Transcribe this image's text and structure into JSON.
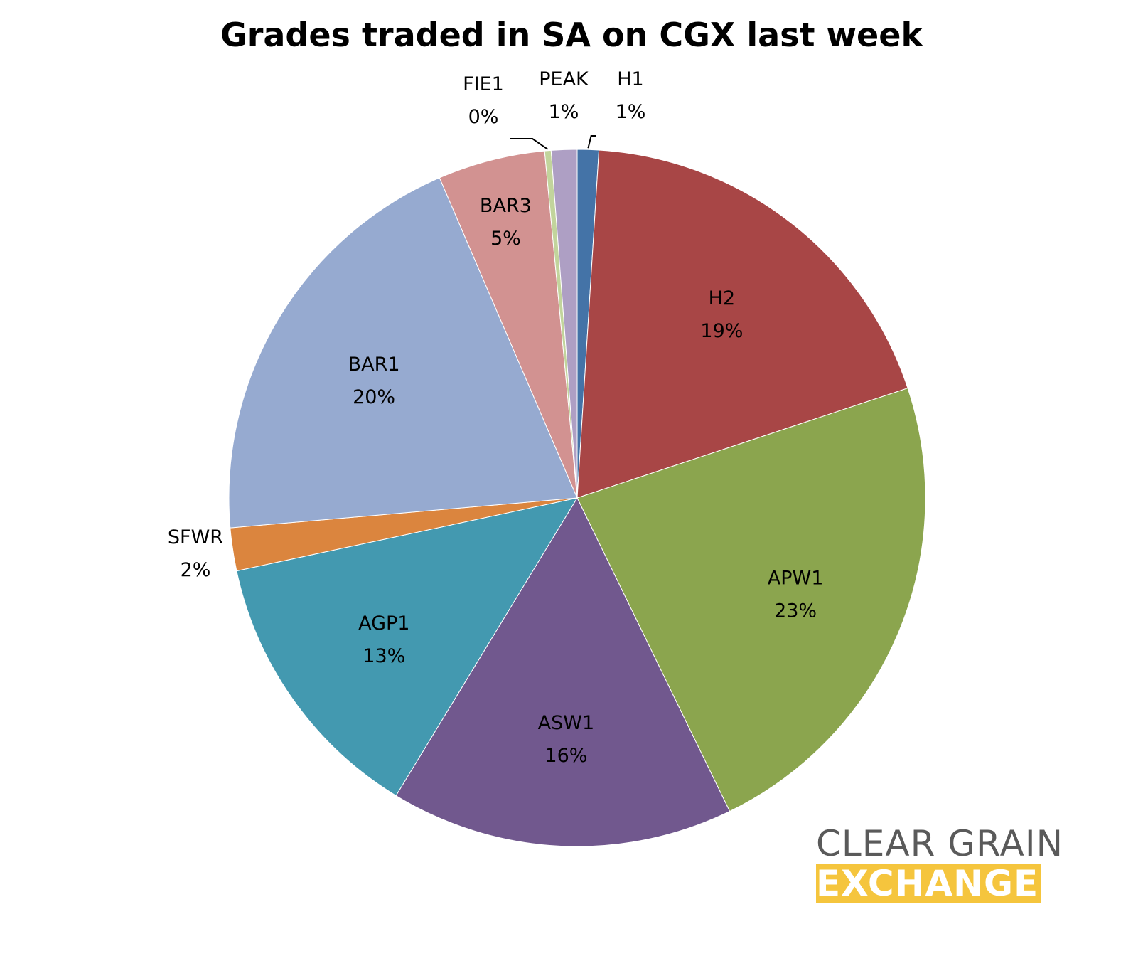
{
  "title": "Grades traded in SA on CGX last week",
  "chart_data": {
    "type": "pie",
    "title": "Grades traded in SA on CGX last week",
    "slices": [
      {
        "name": "H1",
        "value": 1,
        "label": "1%",
        "color": "#4473a7"
      },
      {
        "name": "H2",
        "value": 19,
        "label": "19%",
        "color": "#a84646"
      },
      {
        "name": "APW1",
        "value": 23,
        "label": "23%",
        "color": "#8ba54e"
      },
      {
        "name": "ASW1",
        "value": 16,
        "label": "16%",
        "color": "#71588e"
      },
      {
        "name": "AGP1",
        "value": 13,
        "label": "13%",
        "color": "#4399b0"
      },
      {
        "name": "SFWR",
        "value": 2,
        "label": "2%",
        "color": "#db853e"
      },
      {
        "name": "BAR1",
        "value": 20,
        "label": "20%",
        "color": "#96aad0"
      },
      {
        "name": "BAR3",
        "value": 5,
        "label": "5%",
        "color": "#d29291"
      },
      {
        "name": "FIE1",
        "value": 0.3,
        "label": "0%",
        "color": "#c2d49c"
      },
      {
        "name": "PEAK",
        "value": 1.2,
        "label": "1%",
        "color": "#ae9fc4"
      }
    ]
  },
  "logo": {
    "line1": "CLEAR GRAIN",
    "line2": "EXCHANGE",
    "text_color": "#5a5a5a",
    "accent_color": "#f5c53d"
  }
}
